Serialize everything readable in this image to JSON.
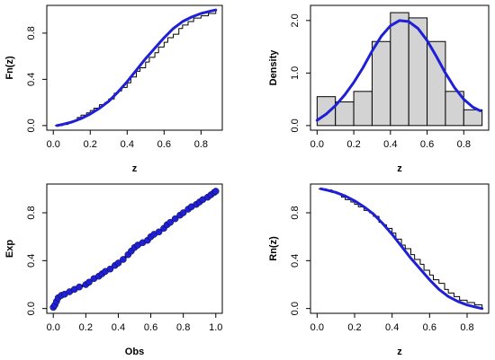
{
  "chart_data": [
    {
      "id": "ecdf",
      "type": "line",
      "title": "",
      "xlabel": "z",
      "ylabel": "Fn(z)",
      "xlim": [
        0.0,
        0.88
      ],
      "ylim": [
        0.0,
        1.0
      ],
      "xticks": [
        0.0,
        0.2,
        0.4,
        0.6,
        0.8
      ],
      "xtick_labels": [
        "0.0",
        "0.2",
        "0.4",
        "0.6",
        "0.8"
      ],
      "yticks": [
        0.0,
        0.4,
        0.8
      ],
      "ytick_labels": [
        "0.0",
        "0.4",
        "0.8"
      ],
      "series": [
        {
          "role": "empirical",
          "style": "step",
          "color": "#000000",
          "x": [
            0.01,
            0.05,
            0.08,
            0.1,
            0.13,
            0.15,
            0.18,
            0.2,
            0.22,
            0.25,
            0.28,
            0.3,
            0.33,
            0.35,
            0.37,
            0.4,
            0.42,
            0.45,
            0.47,
            0.5,
            0.52,
            0.55,
            0.57,
            0.6,
            0.62,
            0.65,
            0.68,
            0.7,
            0.73,
            0.76,
            0.8,
            0.84,
            0.88
          ],
          "y": [
            0.0,
            0.01,
            0.03,
            0.04,
            0.07,
            0.09,
            0.11,
            0.13,
            0.15,
            0.18,
            0.2,
            0.23,
            0.28,
            0.3,
            0.33,
            0.37,
            0.42,
            0.47,
            0.5,
            0.55,
            0.59,
            0.63,
            0.68,
            0.72,
            0.76,
            0.79,
            0.84,
            0.87,
            0.9,
            0.93,
            0.95,
            0.97,
            1.0
          ]
        },
        {
          "role": "fitted",
          "style": "line",
          "color": "#1f1fd6",
          "x": [
            0.02,
            0.05,
            0.1,
            0.15,
            0.2,
            0.25,
            0.3,
            0.35,
            0.4,
            0.45,
            0.5,
            0.55,
            0.6,
            0.65,
            0.7,
            0.75,
            0.8,
            0.85,
            0.88
          ],
          "y": [
            0.0,
            0.01,
            0.03,
            0.06,
            0.1,
            0.15,
            0.21,
            0.29,
            0.38,
            0.48,
            0.58,
            0.67,
            0.76,
            0.84,
            0.9,
            0.94,
            0.97,
            0.99,
            1.0
          ]
        }
      ]
    },
    {
      "id": "density",
      "type": "bar",
      "title": "",
      "xlabel": "z",
      "ylabel": "Density",
      "xlim": [
        0.0,
        0.9
      ],
      "ylim": [
        0.0,
        2.2
      ],
      "xticks": [
        0.0,
        0.2,
        0.4,
        0.6,
        0.8
      ],
      "xtick_labels": [
        "0.0",
        "0.2",
        "0.4",
        "0.6",
        "0.8"
      ],
      "yticks": [
        0.0,
        1.0,
        2.0
      ],
      "ytick_labels": [
        "0.0",
        "1.0",
        "2.0"
      ],
      "bins": [
        [
          0.0,
          0.1,
          0.55
        ],
        [
          0.1,
          0.2,
          0.45
        ],
        [
          0.2,
          0.3,
          0.65
        ],
        [
          0.3,
          0.4,
          1.6
        ],
        [
          0.4,
          0.5,
          2.15
        ],
        [
          0.5,
          0.6,
          2.05
        ],
        [
          0.6,
          0.7,
          1.6
        ],
        [
          0.7,
          0.8,
          0.65
        ],
        [
          0.8,
          0.9,
          0.3
        ]
      ],
      "bar_color": "#d3d3d3",
      "curve": {
        "color": "#1f1fd6",
        "x": [
          0.0,
          0.05,
          0.1,
          0.15,
          0.2,
          0.25,
          0.3,
          0.35,
          0.4,
          0.45,
          0.5,
          0.55,
          0.6,
          0.65,
          0.7,
          0.75,
          0.8,
          0.85,
          0.89
        ],
        "y": [
          0.1,
          0.22,
          0.38,
          0.58,
          0.82,
          1.1,
          1.42,
          1.7,
          1.9,
          2.0,
          1.98,
          1.85,
          1.62,
          1.32,
          1.0,
          0.72,
          0.5,
          0.35,
          0.28
        ]
      }
    },
    {
      "id": "pp-plot",
      "type": "scatter",
      "title": "",
      "xlabel": "Obs",
      "ylabel": "Exp",
      "xlim": [
        0.0,
        1.0
      ],
      "ylim": [
        0.0,
        1.0
      ],
      "xticks": [
        0.0,
        0.2,
        0.4,
        0.6,
        0.8,
        1.0
      ],
      "xtick_labels": [
        "0.0",
        "0.2",
        "0.4",
        "0.6",
        "0.8",
        "1.0"
      ],
      "yticks": [
        0.0,
        0.4,
        0.8
      ],
      "ytick_labels": [
        "0.0",
        "0.4",
        "0.8"
      ],
      "point_color": "#1f1fd6",
      "line_color": "#000000",
      "x": [
        0.0,
        0.01,
        0.02,
        0.03,
        0.05,
        0.07,
        0.1,
        0.13,
        0.16,
        0.2,
        0.22,
        0.25,
        0.28,
        0.3,
        0.32,
        0.35,
        0.38,
        0.4,
        0.43,
        0.46,
        0.48,
        0.5,
        0.52,
        0.55,
        0.58,
        0.6,
        0.62,
        0.65,
        0.68,
        0.7,
        0.72,
        0.75,
        0.78,
        0.8,
        0.83,
        0.85,
        0.88,
        0.9,
        0.92,
        0.95,
        0.97,
        0.99,
        1.0
      ],
      "y": [
        0.01,
        0.03,
        0.06,
        0.09,
        0.11,
        0.12,
        0.14,
        0.16,
        0.18,
        0.2,
        0.22,
        0.25,
        0.27,
        0.29,
        0.31,
        0.33,
        0.36,
        0.38,
        0.41,
        0.45,
        0.48,
        0.51,
        0.53,
        0.55,
        0.57,
        0.6,
        0.62,
        0.64,
        0.67,
        0.7,
        0.72,
        0.75,
        0.78,
        0.8,
        0.83,
        0.85,
        0.87,
        0.89,
        0.91,
        0.93,
        0.95,
        0.97,
        0.98
      ]
    },
    {
      "id": "survival",
      "type": "line",
      "title": "",
      "xlabel": "z",
      "ylabel": "Rn(z)",
      "xlim": [
        0.0,
        0.88
      ],
      "ylim": [
        0.0,
        1.0
      ],
      "xticks": [
        0.0,
        0.2,
        0.4,
        0.6,
        0.8
      ],
      "xtick_labels": [
        "0.0",
        "0.2",
        "0.4",
        "0.6",
        "0.8"
      ],
      "yticks": [
        0.0,
        0.4,
        0.8
      ],
      "ytick_labels": [
        "0.0",
        "0.4",
        "0.8"
      ],
      "series": [
        {
          "role": "empirical",
          "style": "step",
          "color": "#000000",
          "x": [
            0.01,
            0.05,
            0.08,
            0.1,
            0.13,
            0.15,
            0.18,
            0.2,
            0.22,
            0.25,
            0.28,
            0.3,
            0.33,
            0.35,
            0.37,
            0.4,
            0.42,
            0.45,
            0.47,
            0.5,
            0.52,
            0.55,
            0.57,
            0.6,
            0.62,
            0.65,
            0.68,
            0.7,
            0.73,
            0.76,
            0.8,
            0.84,
            0.88
          ],
          "y": [
            1.0,
            0.99,
            0.97,
            0.96,
            0.93,
            0.91,
            0.89,
            0.87,
            0.85,
            0.82,
            0.8,
            0.77,
            0.72,
            0.7,
            0.67,
            0.63,
            0.58,
            0.53,
            0.5,
            0.45,
            0.41,
            0.37,
            0.32,
            0.28,
            0.24,
            0.21,
            0.16,
            0.13,
            0.1,
            0.07,
            0.05,
            0.03,
            0.0
          ]
        },
        {
          "role": "fitted",
          "style": "line",
          "color": "#1f1fd6",
          "x": [
            0.02,
            0.05,
            0.1,
            0.15,
            0.2,
            0.25,
            0.3,
            0.35,
            0.4,
            0.45,
            0.5,
            0.55,
            0.6,
            0.65,
            0.7,
            0.75,
            0.8,
            0.85,
            0.88
          ],
          "y": [
            1.0,
            0.99,
            0.97,
            0.94,
            0.9,
            0.85,
            0.79,
            0.71,
            0.62,
            0.52,
            0.42,
            0.33,
            0.24,
            0.16,
            0.1,
            0.06,
            0.03,
            0.01,
            0.0
          ]
        }
      ]
    }
  ]
}
